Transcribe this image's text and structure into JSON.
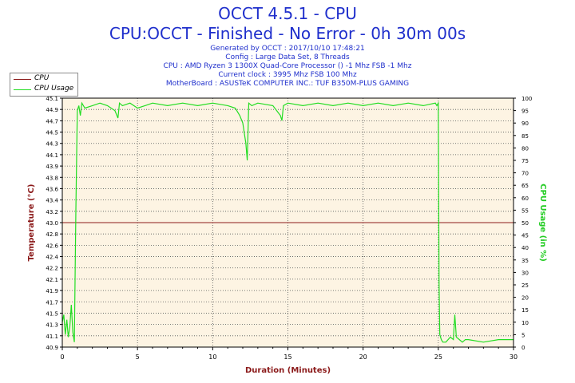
{
  "header": {
    "title": "OCCT 4.5.1 - CPU",
    "subtitle": "CPU:OCCT - Finished - No Error - 0h 30m 00s",
    "info_lines": [
      "Generated by OCCT : 2017/10/10 17:48:21",
      "Config : Large Data Set, 8 Threads",
      "CPU : AMD Ryzen 3 1300X Quad-Core Processor () -1 Mhz FSB -1 Mhz",
      "Current clock : 3995 Mhz FSB 100 Mhz",
      "MotherBoard : ASUSTeK COMPUTER INC.: TUF B350M-PLUS GAMING"
    ]
  },
  "legend": {
    "items": [
      {
        "label": "CPU",
        "color": "#8b1a1a"
      },
      {
        "label": "CPU Usage",
        "color": "#22dd22"
      }
    ]
  },
  "colors": {
    "plot_bg": "#fdf4e3",
    "grid": "#555555",
    "temp_axis": "#8b1a1a",
    "usage_axis": "#22cc22",
    "x_axis_label": "#8b1a1a"
  },
  "chart_data": {
    "type": "line",
    "xlabel": "Duration (Minutes)",
    "ylabel_left": "Temperature (°C)",
    "ylabel_right": "CPU Usage (in %)",
    "xlim": [
      0,
      30
    ],
    "ylim_left": [
      40.9,
      45.1
    ],
    "ylim_right": [
      0,
      100
    ],
    "x_ticks": [
      "0",
      "5",
      "10",
      "15",
      "20",
      "25",
      "30"
    ],
    "y_left_ticks": [
      "40.9",
      "41.1",
      "41.3",
      "41.5",
      "41.7",
      "41.9",
      "42.1",
      "42.2",
      "42.4",
      "42.6",
      "42.8",
      "43.0",
      "43.2",
      "43.4",
      "43.6",
      "43.8",
      "43.9",
      "44.1",
      "44.3",
      "44.5",
      "44.7",
      "44.9",
      "45.1"
    ],
    "y_right_ticks": [
      "0",
      "5",
      "10",
      "15",
      "20",
      "25",
      "30",
      "35",
      "40",
      "45",
      "50",
      "55",
      "60",
      "65",
      "70",
      "75",
      "80",
      "85",
      "90",
      "95",
      "100"
    ],
    "grid": true,
    "legend_position": "top-left",
    "series": [
      {
        "name": "CPU",
        "axis": "left",
        "x": [
          0,
          30
        ],
        "y": [
          43.0,
          43.0
        ]
      },
      {
        "name": "CPU Usage",
        "axis": "right",
        "x": [
          0,
          0.1,
          0.2,
          0.3,
          0.4,
          0.5,
          0.6,
          0.7,
          0.8,
          0.9,
          1.0,
          1.1,
          1.2,
          1.3,
          1.5,
          2.0,
          2.5,
          3.0,
          3.5,
          3.7,
          3.8,
          4.0,
          4.5,
          5.0,
          5.5,
          6.0,
          7.0,
          8.0,
          9.0,
          10.0,
          11.0,
          11.5,
          11.8,
          12.0,
          12.2,
          12.3,
          12.4,
          12.6,
          13.0,
          14.0,
          14.5,
          14.6,
          14.7,
          15.0,
          16.0,
          17.0,
          18.0,
          19.0,
          20.0,
          21.0,
          22.0,
          23.0,
          24.0,
          24.8,
          24.9,
          25.0,
          25.05,
          25.1,
          25.2,
          25.3,
          25.5,
          25.8,
          26.0,
          26.1,
          26.2,
          26.4,
          26.6,
          26.8,
          27.0,
          28.0,
          29.0,
          30.0
        ],
        "y": [
          10,
          13,
          5,
          11,
          4,
          8,
          17,
          6,
          2,
          55,
          95,
          97,
          93,
          98,
          96,
          97,
          98,
          97,
          95,
          92,
          98,
          97,
          98,
          96,
          97,
          98,
          97,
          98,
          97,
          98,
          97,
          96,
          93,
          90,
          82,
          75,
          98,
          97,
          98,
          97,
          93,
          91,
          97,
          98,
          97,
          98,
          97,
          98,
          97,
          98,
          97,
          98,
          97,
          98,
          97,
          98,
          25,
          5,
          3,
          2,
          2,
          4,
          3,
          13,
          4,
          3,
          2,
          3,
          3,
          2,
          3,
          3
        ]
      }
    ]
  }
}
